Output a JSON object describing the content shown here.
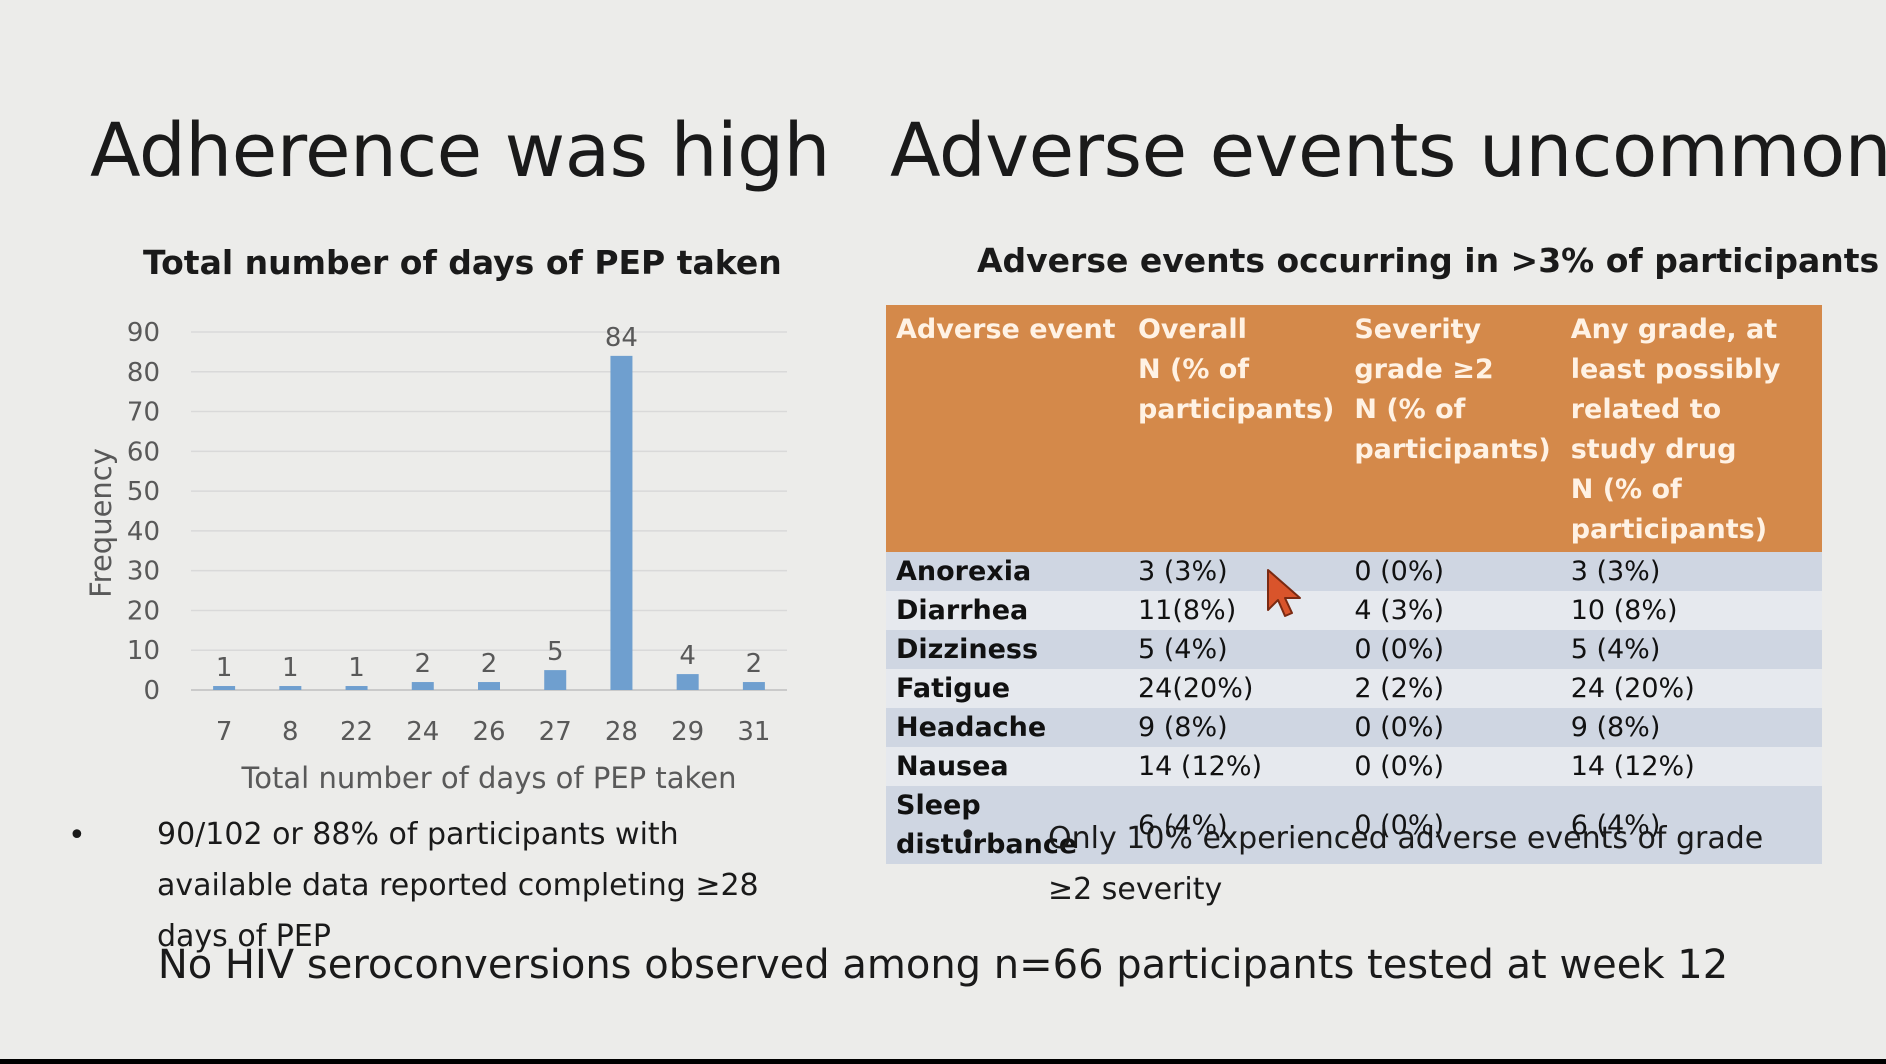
{
  "slide": {
    "left_heading": "Adherence was high",
    "right_heading": "Adverse events uncommon",
    "footer": "No HIV seroconversions observed among n=66 participants tested at week 12"
  },
  "left_bullet": "90/102 or 88% of participants with available data reported completing ≥28 days of PEP",
  "right_bullet": "Only 10% experienced adverse events of grade ≥2 severity",
  "bullet_symbol": "•",
  "table": {
    "title": "Adverse events occurring in >3% of participants",
    "header_color": "#d4894a",
    "headers": [
      "Adverse event",
      "Overall\nN (% of participants)",
      "Severity grade ≥2\nN (% of participants)",
      "Any grade, at least possibly related to study drug\nN (% of participants)"
    ],
    "rows": [
      [
        "Anorexia",
        "3 (3%)",
        "0 (0%)",
        "3 (3%)"
      ],
      [
        "Diarrhea",
        "11(8%)",
        "4 (3%)",
        "10 (8%)"
      ],
      [
        "Dizziness",
        "5 (4%)",
        "0 (0%)",
        "5 (4%)"
      ],
      [
        "Fatigue",
        "24(20%)",
        "2 (2%)",
        "24 (20%)"
      ],
      [
        "Headache",
        "9 (8%)",
        "0 (0%)",
        "9 (8%)"
      ],
      [
        "Nausea",
        "14 (12%)",
        "0 (0%)",
        "14 (12%)"
      ],
      [
        "Sleep disturbance",
        "6 (4%)",
        "0 (0%)",
        "6 (4%)"
      ]
    ]
  },
  "chart_data": {
    "type": "bar",
    "title": "Total number of days of PEP taken",
    "xlabel": "Total number of days of PEP taken",
    "ylabel": "Frequency",
    "categories": [
      "7",
      "8",
      "22",
      "24",
      "26",
      "27",
      "28",
      "29",
      "31"
    ],
    "values": [
      1,
      1,
      1,
      2,
      2,
      5,
      84,
      4,
      2
    ],
    "ylim": [
      0,
      90
    ],
    "yticks": [
      0,
      10,
      20,
      30,
      40,
      50,
      60,
      70,
      80,
      90
    ],
    "grid": true,
    "data_labels": true,
    "bar_color": "#6f9fcf"
  },
  "cursor_color": "#d9542b"
}
